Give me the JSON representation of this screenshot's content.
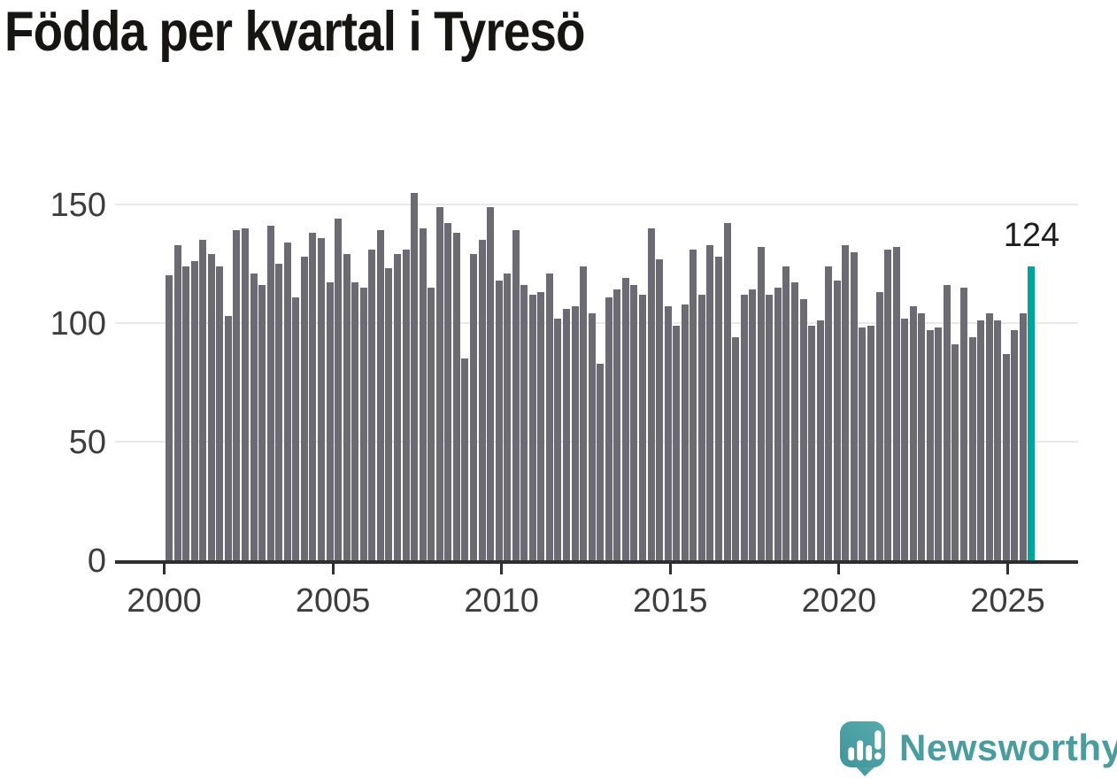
{
  "page_title": "Födda per kvartal i Tyresö",
  "chart_data": {
    "type": "bar",
    "title": "Födda per kvartal i Tyresö",
    "x_start": "2000 Q1",
    "x_end": "2025 Q3",
    "frequency": "quarterly",
    "values": [
      120,
      133,
      124,
      126,
      135,
      129,
      124,
      103,
      139,
      140,
      121,
      116,
      141,
      125,
      134,
      111,
      128,
      138,
      136,
      117,
      144,
      129,
      117,
      115,
      131,
      139,
      123,
      129,
      131,
      155,
      140,
      115,
      149,
      142,
      138,
      85,
      129,
      135,
      149,
      118,
      121,
      139,
      116,
      112,
      113,
      121,
      102,
      106,
      107,
      124,
      104,
      83,
      111,
      114,
      119,
      116,
      112,
      140,
      127,
      107,
      99,
      108,
      131,
      112,
      133,
      128,
      142,
      94,
      112,
      114,
      132,
      112,
      115,
      124,
      117,
      110,
      99,
      101,
      124,
      118,
      133,
      130,
      98,
      99,
      113,
      131,
      132,
      102,
      107,
      104,
      97,
      98,
      116,
      91,
      115,
      94,
      101,
      104,
      101,
      87,
      97,
      104,
      124
    ],
    "highlight": {
      "index": 102,
      "value": 124,
      "label": "124"
    },
    "y_ticks": [
      0,
      50,
      100,
      150
    ],
    "x_tick_years": [
      2000,
      2005,
      2010,
      2015,
      2020,
      2025
    ],
    "ylim": [
      0,
      160
    ],
    "grid": true,
    "legend": "none",
    "bar_color": "#6c6a73",
    "highlight_color": "#00a49c"
  },
  "annotation": {
    "value_label": "124"
  },
  "branding": {
    "name": "Newsworthy",
    "icon": "newsworthy-logo-icon",
    "text_color": "#4a9c9e",
    "icon_color": "#4aa1a3"
  }
}
